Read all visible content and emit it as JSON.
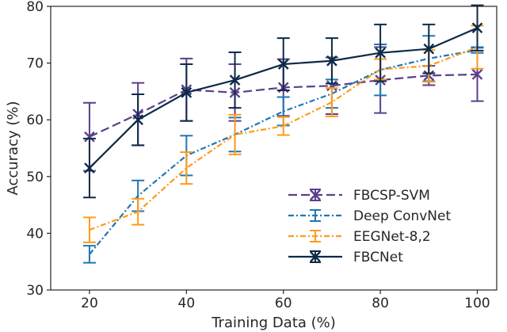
{
  "chart_data": {
    "type": "line",
    "title": "",
    "xlabel": "Training Data (%)",
    "ylabel": "Accuracy (%)",
    "xlim": [
      12,
      104
    ],
    "ylim": [
      30,
      80
    ],
    "xticks": [
      20,
      40,
      60,
      80,
      100
    ],
    "yticks": [
      30,
      40,
      50,
      60,
      70,
      80
    ],
    "grid": false,
    "legend_position": "bottom-right",
    "x": [
      20,
      30,
      40,
      50,
      60,
      70,
      80,
      90,
      100
    ],
    "series": [
      {
        "name": "FBCSP-SVM",
        "color": "#5b3f8c",
        "dash": "dashed",
        "marker": "x",
        "values": [
          57.0,
          61.0,
          65.3,
          64.8,
          65.7,
          66.0,
          67.0,
          67.8,
          68.0
        ],
        "errors": [
          6.0,
          5.5,
          5.5,
          5.0,
          5.0,
          5.0,
          5.8,
          1.7,
          4.7
        ]
      },
      {
        "name": "Deep ConvNet",
        "color": "#1f77b4",
        "dash": "dashdot",
        "marker": "none",
        "values": [
          36.3,
          46.6,
          53.7,
          57.4,
          61.5,
          64.6,
          68.8,
          70.8,
          72.3
        ],
        "errors": [
          1.5,
          2.7,
          3.5,
          3.0,
          2.5,
          2.5,
          4.5,
          4.0,
          0.5
        ]
      },
      {
        "name": "EEGNet-8,2",
        "color": "#ff9a1a",
        "dash": "dashdot",
        "marker": "none",
        "values": [
          40.6,
          43.8,
          51.5,
          57.4,
          58.9,
          63.1,
          68.9,
          69.5,
          72.8
        ],
        "errors": [
          2.2,
          2.3,
          2.8,
          3.5,
          1.6,
          2.5,
          1.8,
          2.8,
          3.8
        ]
      },
      {
        "name": "FBCNet",
        "color": "#0d2a47",
        "dash": "solid",
        "marker": "x",
        "values": [
          51.5,
          60.0,
          64.8,
          67.0,
          69.8,
          70.4,
          71.8,
          72.5,
          76.2
        ],
        "errors": [
          5.2,
          4.5,
          5.0,
          4.9,
          4.6,
          4.0,
          5.0,
          4.3,
          4.0
        ]
      }
    ]
  }
}
